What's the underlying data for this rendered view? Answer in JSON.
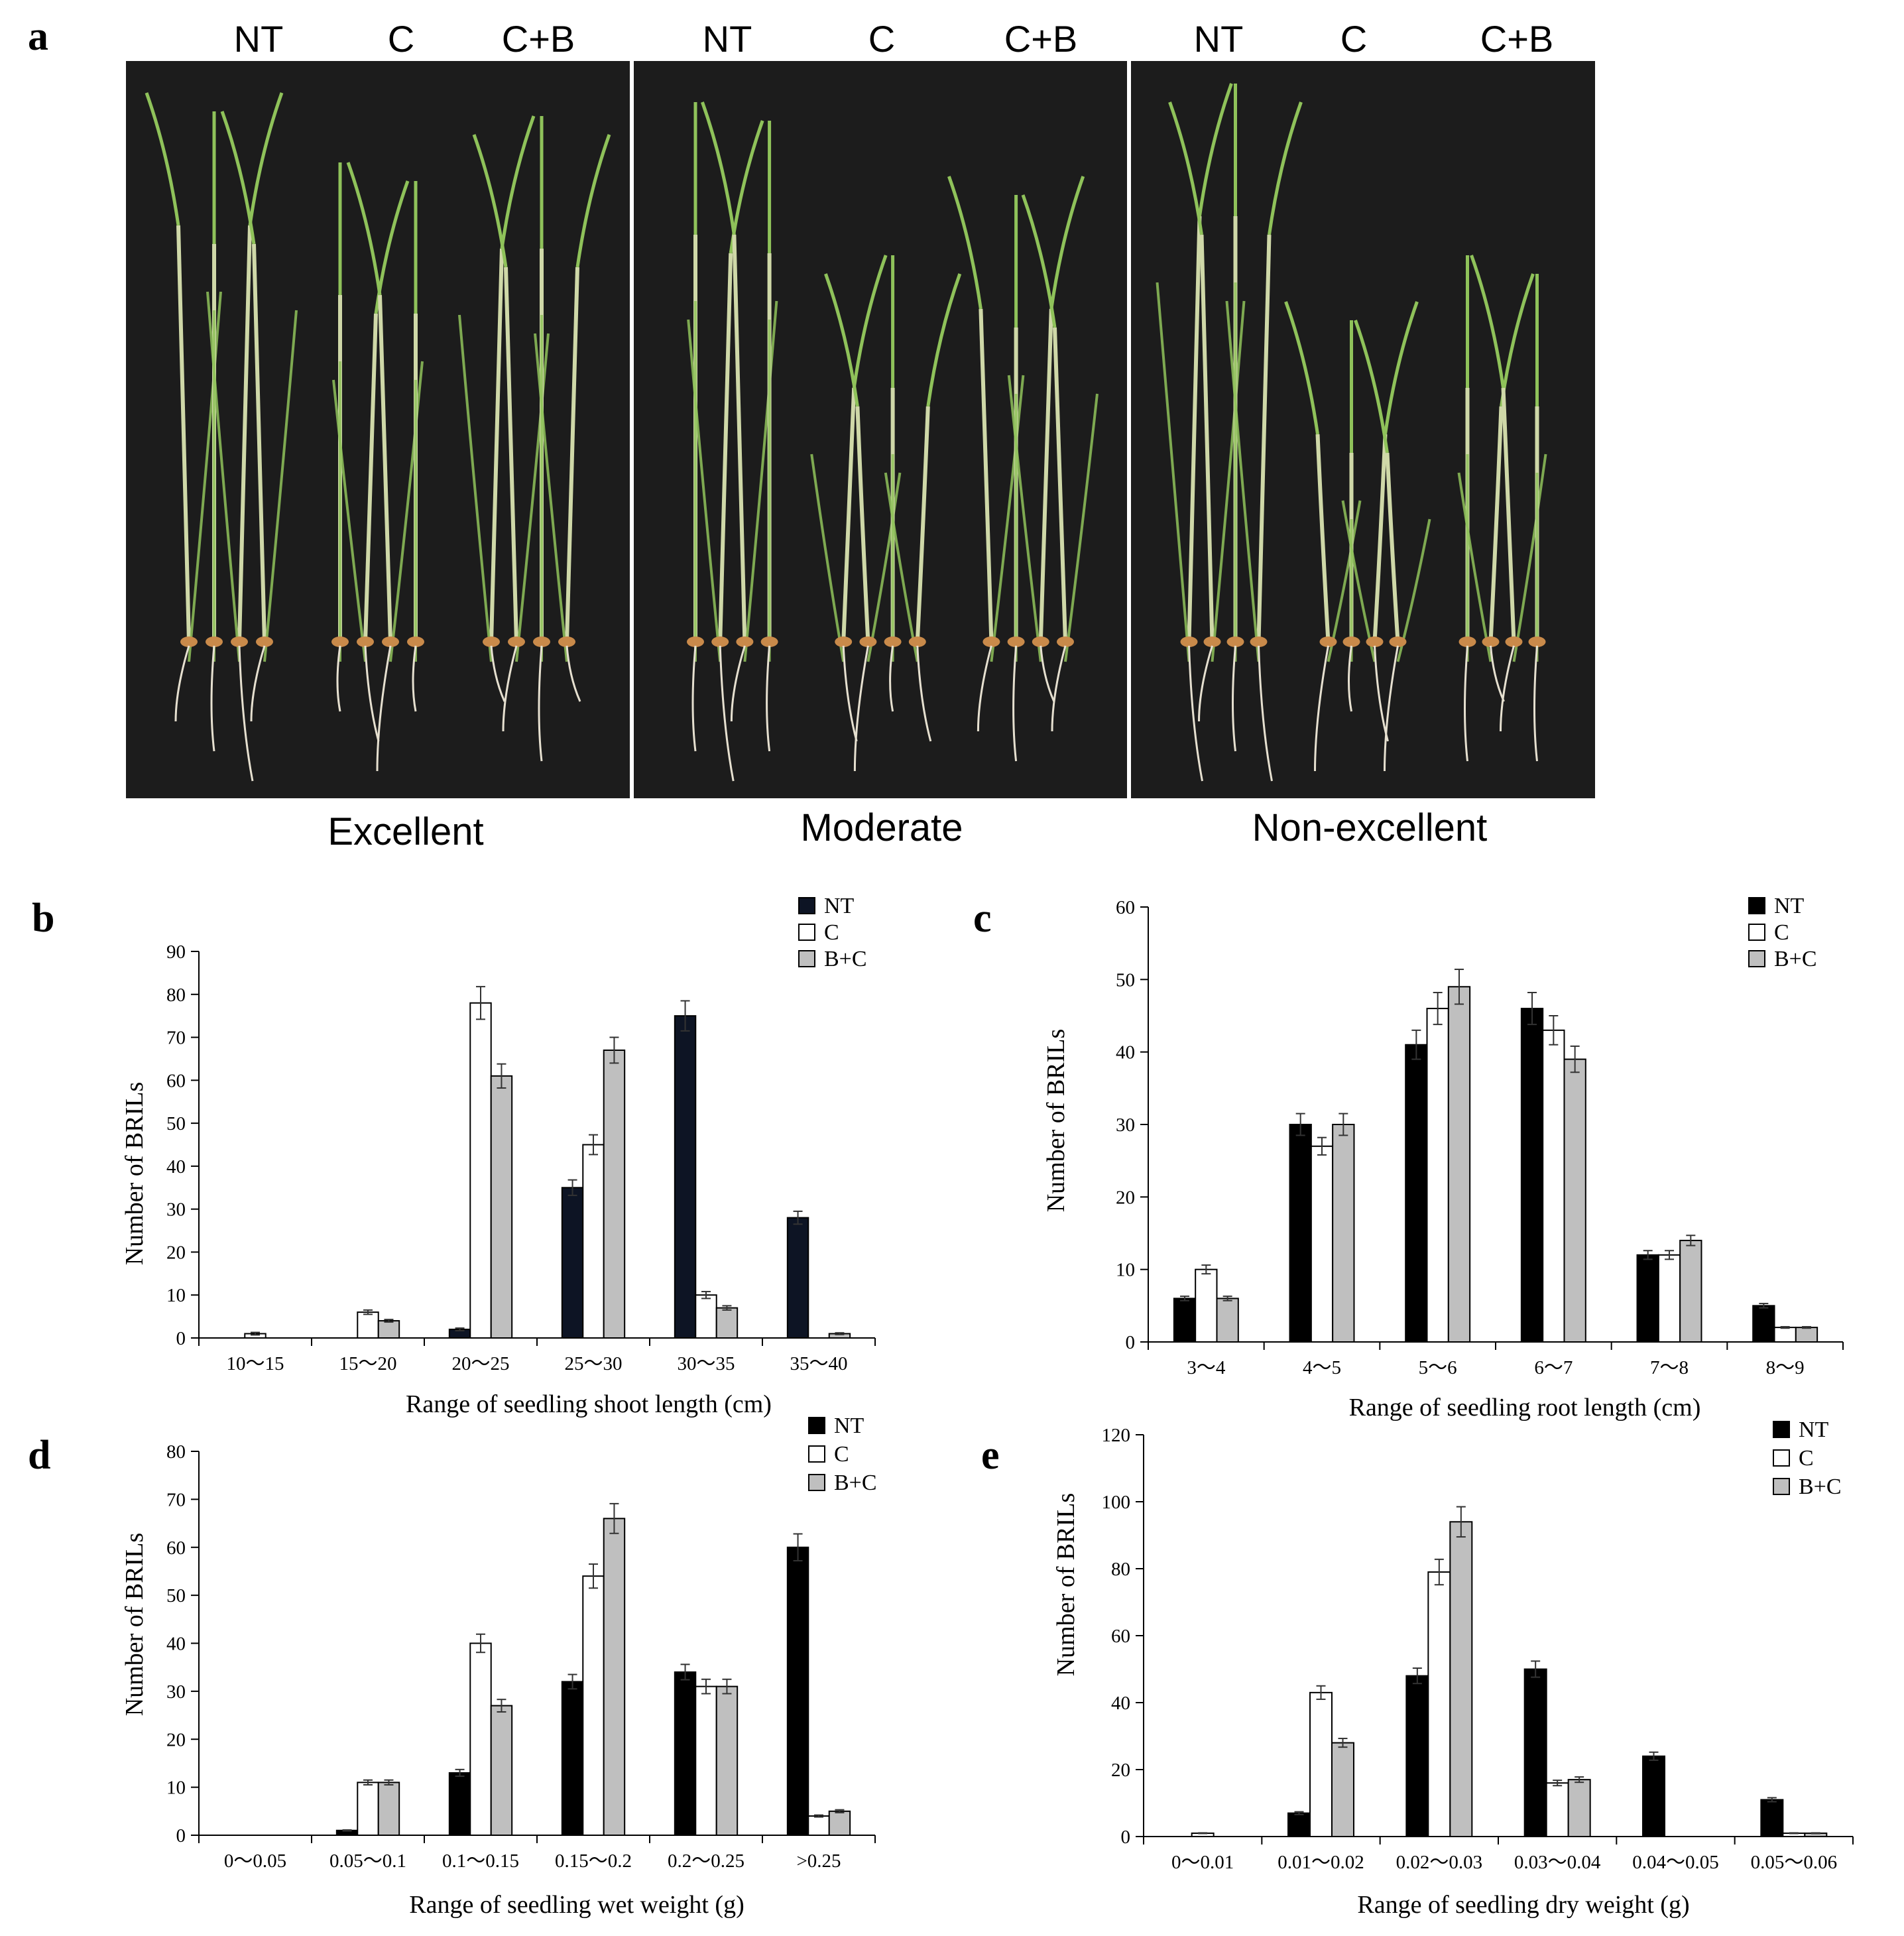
{
  "panel_a": {
    "letter": "a",
    "group_labels": [
      {
        "label": "Excellent",
        "treatments": [
          "NT",
          "C",
          "C+B"
        ]
      },
      {
        "label": "Moderate",
        "treatments": [
          "NT",
          "C",
          "C+B"
        ]
      },
      {
        "label": "Non-excellent",
        "treatments": [
          "NT",
          "C",
          "C+B"
        ]
      }
    ],
    "background_color": "#1c1c1c",
    "leaf_color": "#8fc25a",
    "stem_color": "#cfd8a8",
    "seed_color": "#c98a4a",
    "root_color": "#e6e0d0"
  },
  "chart_data": [
    {
      "panel": "b",
      "type": "bar",
      "xlabel": "Range of seedling shoot length (cm)",
      "ylabel": "Number of BRILs",
      "ylim": [
        0,
        90
      ],
      "yticks": [
        0,
        10,
        20,
        30,
        40,
        50,
        60,
        70,
        80,
        90
      ],
      "categories": [
        "10～15",
        "15～20",
        "20～25",
        "25～30",
        "30～35",
        "35～40"
      ],
      "legend": "top-right",
      "series": [
        {
          "name": "NT",
          "color": "#0d1424",
          "values": [
            0,
            0,
            2,
            35,
            75,
            28
          ],
          "errors": [
            0,
            0,
            0.3,
            1.8,
            3.5,
            1.5
          ]
        },
        {
          "name": "C",
          "color": "#ffffff",
          "values": [
            1,
            6,
            78,
            45,
            10,
            0
          ],
          "errors": [
            0.3,
            0.5,
            3.8,
            2.3,
            0.8,
            0
          ]
        },
        {
          "name": "B+C",
          "color": "#bfbfbf",
          "values": [
            0,
            4,
            61,
            67,
            7,
            1
          ],
          "errors": [
            0,
            0.3,
            2.8,
            3.0,
            0.5,
            0.2
          ]
        }
      ]
    },
    {
      "panel": "c",
      "type": "bar",
      "xlabel": "Range of seedling root length (cm)",
      "ylabel": "Number of BRILs",
      "ylim": [
        0,
        60
      ],
      "yticks": [
        0,
        10,
        20,
        30,
        40,
        50,
        60
      ],
      "categories": [
        "3～4",
        "4～5",
        "5～6",
        "6～7",
        "7～8",
        "8～9"
      ],
      "legend": "top-right",
      "series": [
        {
          "name": "NT",
          "color": "#000000",
          "values": [
            6,
            30,
            41,
            46,
            12,
            5
          ],
          "errors": [
            0.3,
            1.5,
            2.0,
            2.2,
            0.6,
            0.3
          ]
        },
        {
          "name": "C",
          "color": "#ffffff",
          "values": [
            10,
            27,
            46,
            43,
            12,
            2
          ],
          "errors": [
            0.6,
            1.2,
            2.2,
            2.0,
            0.6,
            0.1
          ]
        },
        {
          "name": "B+C",
          "color": "#bfbfbf",
          "values": [
            6,
            30,
            49,
            39,
            14,
            2
          ],
          "errors": [
            0.3,
            1.5,
            2.4,
            1.8,
            0.7,
            0.1
          ]
        }
      ]
    },
    {
      "panel": "d",
      "type": "bar",
      "xlabel": "Range of seedling wet weight (g)",
      "ylabel": "Number of BRILs",
      "ylim": [
        0,
        80
      ],
      "yticks": [
        0,
        10,
        20,
        30,
        40,
        50,
        60,
        70,
        80
      ],
      "categories": [
        "0～0.05",
        "0.05～0.1",
        "0.1～0.15",
        "0.15～0.2",
        "0.2～0.25",
        ">0.25"
      ],
      "legend": "top-right",
      "series": [
        {
          "name": "NT",
          "color": "#000000",
          "values": [
            0,
            1,
            13,
            32,
            34,
            60
          ],
          "errors": [
            0,
            0.1,
            0.7,
            1.5,
            1.6,
            2.8
          ]
        },
        {
          "name": "C",
          "color": "#ffffff",
          "values": [
            0,
            11,
            40,
            54,
            31,
            4
          ],
          "errors": [
            0,
            0.5,
            1.9,
            2.5,
            1.5,
            0.2
          ]
        },
        {
          "name": "B+C",
          "color": "#bfbfbf",
          "values": [
            0,
            11,
            27,
            66,
            31,
            5
          ],
          "errors": [
            0,
            0.5,
            1.3,
            3.1,
            1.5,
            0.3
          ]
        }
      ]
    },
    {
      "panel": "e",
      "type": "bar",
      "xlabel": "Range of seedling dry weight (g)",
      "ylabel": "Number of BRILs",
      "ylim": [
        0,
        120
      ],
      "yticks": [
        0,
        20,
        40,
        60,
        80,
        100,
        120
      ],
      "categories": [
        "0～0.01",
        "0.01～0.02",
        "0.02～0.03",
        "0.03～0.04",
        "0.04～0.05",
        "0.05～0.06"
      ],
      "legend": "top-right",
      "series": [
        {
          "name": "NT",
          "color": "#000000",
          "values": [
            0,
            7,
            48,
            50,
            24,
            11
          ],
          "errors": [
            0,
            0.4,
            2.3,
            2.4,
            1.2,
            0.6
          ]
        },
        {
          "name": "C",
          "color": "#ffffff",
          "values": [
            1,
            43,
            79,
            16,
            0,
            1
          ],
          "errors": [
            0.1,
            2.0,
            3.8,
            0.8,
            0,
            0.1
          ]
        },
        {
          "name": "B+C",
          "color": "#bfbfbf",
          "values": [
            0,
            28,
            94,
            17,
            0,
            1
          ],
          "errors": [
            0,
            1.3,
            4.5,
            0.8,
            0,
            0.1
          ]
        }
      ]
    }
  ]
}
